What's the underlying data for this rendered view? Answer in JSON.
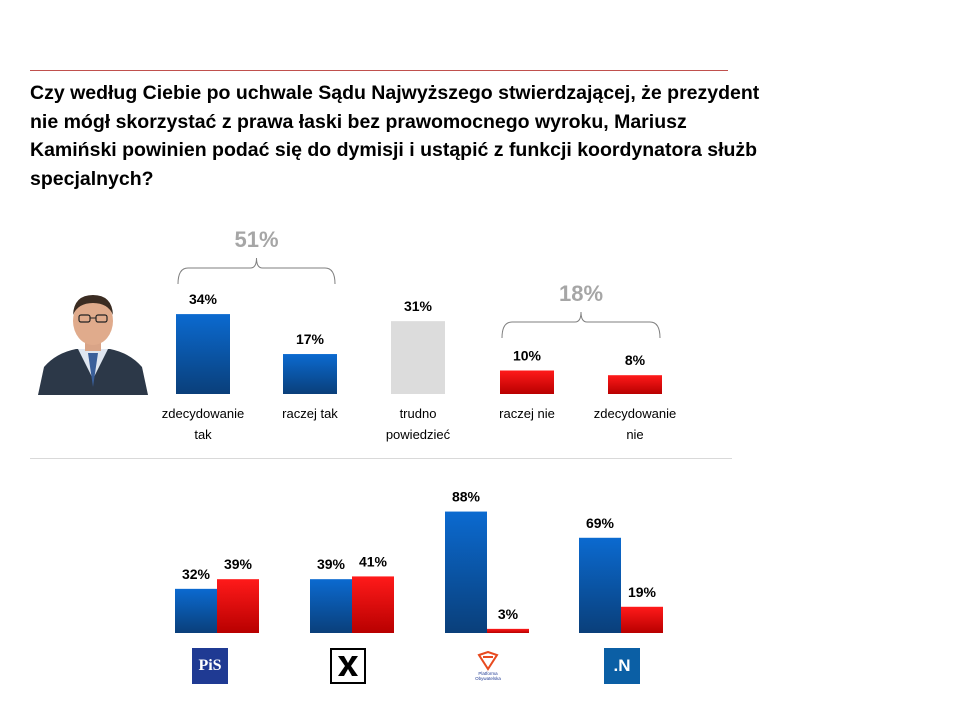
{
  "question": "Czy według Ciebie po uchwale Sądu Najwyższego stwierdzającej, że prezydent nie mógł skorzystać z prawa łaski bez prawomocnego wyroku, Mariusz Kamiński powinien podać się do dymisji i ustąpić z funkcji koordynatora służb specjalnych?",
  "colors": {
    "blue": "#0b5fb5",
    "red": "#f01010",
    "grey": "#d9d9d9",
    "bracket_text": "#a6a6a6"
  },
  "chart_data": [
    {
      "type": "bar",
      "categories": [
        [
          "zdecydowanie",
          "tak"
        ],
        [
          "raczej tak"
        ],
        [
          "trudno",
          "powiedzieć"
        ],
        [
          "raczej nie"
        ],
        [
          "zdecydowanie",
          "nie"
        ]
      ],
      "values": [
        34,
        17,
        31,
        10,
        8
      ],
      "value_labels": [
        "34%",
        "17%",
        "31%",
        "10%",
        "8%"
      ],
      "colors": [
        "blue",
        "blue",
        "grey",
        "red",
        "red"
      ],
      "groups": [
        {
          "label": "51%",
          "from": 0,
          "to": 1
        },
        {
          "label": "18%",
          "from": 3,
          "to": 4
        }
      ]
    },
    {
      "type": "bar",
      "categories": [
        "PiS",
        "Kukiz'15",
        "Platforma Obywatelska",
        "Nowoczesna"
      ],
      "series": [
        {
          "color": "blue",
          "values": [
            32,
            39,
            88,
            69
          ],
          "value_labels": [
            "32%",
            "39%",
            "88%",
            "69%"
          ]
        },
        {
          "color": "red",
          "values": [
            39,
            41,
            3,
            19
          ],
          "value_labels": [
            "39%",
            "41%",
            "3%",
            "19%"
          ]
        }
      ]
    }
  ],
  "logos": {
    "pis": "PiS",
    "po_text": "Platforma Obywatelska",
    "n": ".N"
  }
}
